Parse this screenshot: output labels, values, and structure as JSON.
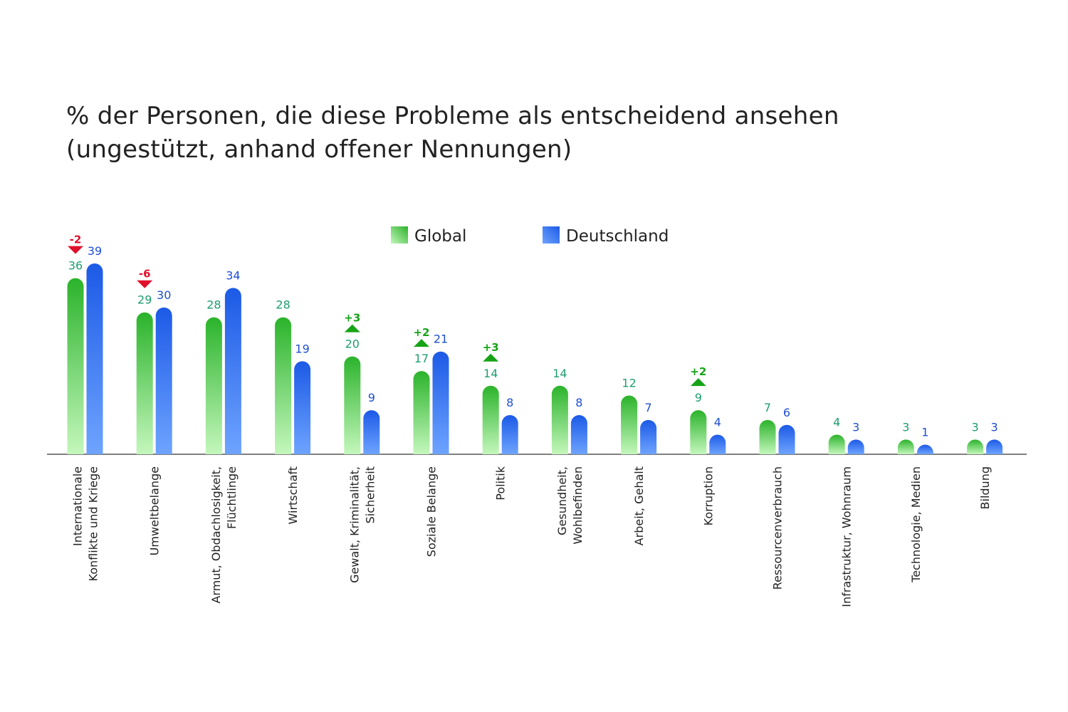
{
  "chart_data": {
    "type": "bar",
    "title": "% der Personen, die diese Probleme als entscheidend ansehen",
    "subtitle": "(ungestützt, anhand offener Nennungen)",
    "xlabel": "",
    "ylabel": "",
    "ylim": [
      0,
      39
    ],
    "grid": false,
    "legend_placement": "top-center",
    "categories": [
      [
        "Internationale",
        "Konflikte und Kriege"
      ],
      [
        "Umweltbelange"
      ],
      [
        "Armut, Obdachlosigkeit,",
        "Flüchtlinge"
      ],
      [
        "Wirtschaft"
      ],
      [
        "Gewalt, Kriminalität,",
        "Sicherheit"
      ],
      [
        "Soziale Belange"
      ],
      [
        "Politik"
      ],
      [
        "Gesundheit,",
        "Wohlbefinden"
      ],
      [
        "Arbeit, Gehalt"
      ],
      [
        "Korruption"
      ],
      [
        "Ressourcenverbrauch"
      ],
      [
        "Infrastruktur, Wohnraum"
      ],
      [
        "Technologie, Medien"
      ],
      [
        "Bildung"
      ]
    ],
    "series": [
      {
        "name": "Global",
        "values": [
          36,
          29,
          28,
          28,
          20,
          17,
          14,
          14,
          12,
          9,
          7,
          4,
          3,
          3
        ],
        "color_top": "#2bb32b",
        "color_bottom": "#c4f7bc",
        "label_color": "#1e9e6e"
      },
      {
        "name": "Deutschland",
        "values": [
          39,
          30,
          34,
          19,
          9,
          21,
          8,
          8,
          7,
          4,
          6,
          3,
          1,
          3
        ],
        "color_top": "#1c5ae6",
        "color_bottom": "#6ea4ff",
        "label_color": "#1f4fcf"
      }
    ],
    "changes": [
      "-2",
      "-6",
      null,
      null,
      "+3",
      "+2",
      "+3",
      null,
      null,
      "+2",
      null,
      null,
      null,
      null
    ],
    "change_colors": {
      "up": "#16a316",
      "down": "#e0102c"
    }
  }
}
